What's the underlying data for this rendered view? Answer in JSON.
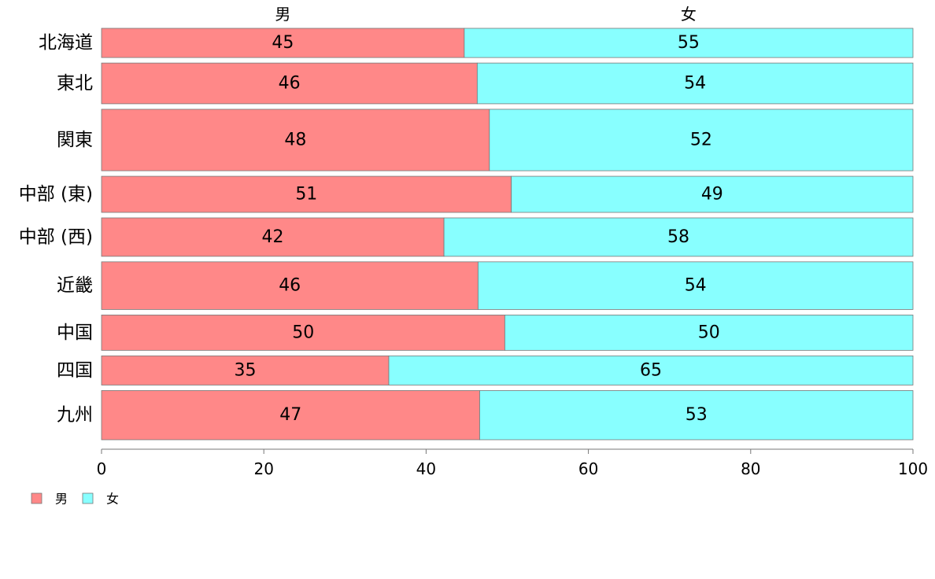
{
  "chart_data": {
    "type": "bar",
    "orientation": "horizontal",
    "stacked": true,
    "variable_width": true,
    "categories": [
      "北海道",
      "東北",
      "関東",
      "中部 (東)",
      "中部 (西)",
      "近畿",
      "中国",
      "四国",
      "九州"
    ],
    "series": [
      {
        "name": "男",
        "values": [
          45,
          46,
          48,
          51,
          42,
          46,
          50,
          35,
          47
        ],
        "exact": [
          44.7,
          46.3,
          47.8,
          50.5,
          42.2,
          46.4,
          49.7,
          35.4,
          46.6
        ],
        "color": "#ff8888"
      },
      {
        "name": "女",
        "values": [
          55,
          54,
          52,
          49,
          58,
          54,
          50,
          65,
          53
        ],
        "color": "#88ffff"
      }
    ],
    "relative_widths": [
      0.38,
      0.53,
      0.8,
      0.47,
      0.5,
      0.62,
      0.46,
      0.38,
      0.64
    ],
    "xlim": [
      0,
      100
    ],
    "xticks": [
      "0",
      "20",
      "40",
      "60",
      "80",
      "100"
    ],
    "top_labels": [
      "男",
      "女"
    ],
    "legend": {
      "position": "bottom-left",
      "items": [
        {
          "label": "男",
          "color": "#ff8888"
        },
        {
          "label": "女",
          "color": "#88ffff"
        }
      ]
    }
  }
}
